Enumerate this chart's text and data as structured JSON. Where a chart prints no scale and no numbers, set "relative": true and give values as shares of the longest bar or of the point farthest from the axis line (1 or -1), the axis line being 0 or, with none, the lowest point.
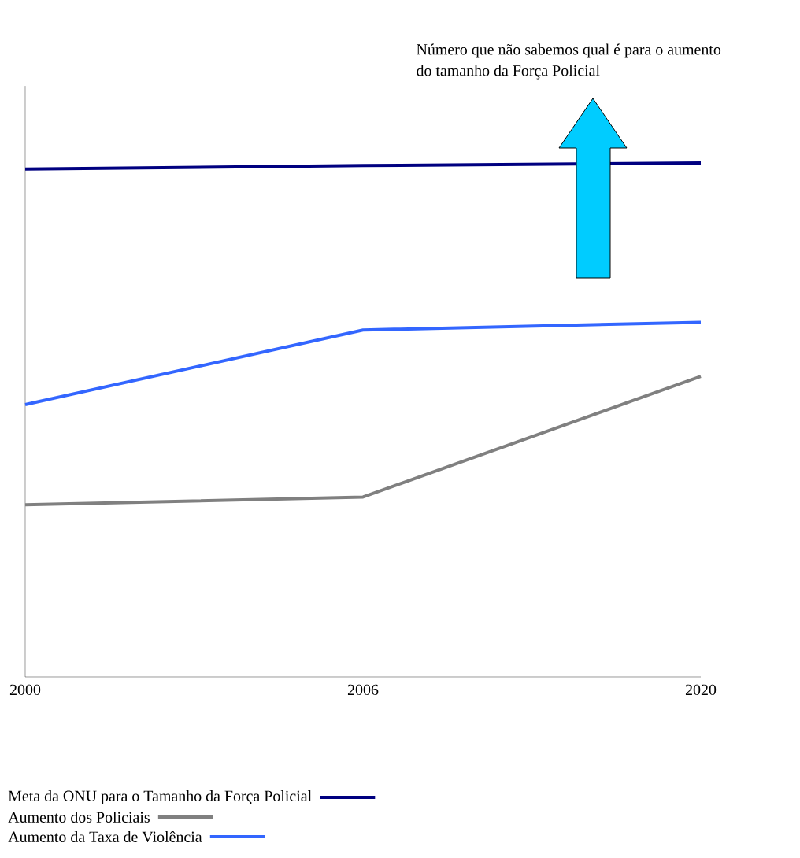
{
  "chart_data": {
    "type": "line",
    "relative": true,
    "categories": [
      "2000",
      "2006",
      "2020"
    ],
    "tick_labels": "x",
    "legend": "bottom left",
    "series": [
      {
        "name": "Meta da ONU para o Tamanho da Força Policial",
        "color": "#000080",
        "values": [
          0.988,
          0.995,
          1
        ]
      },
      {
        "name": "Aumento dos Policiais",
        "color": "#808080",
        "values": [
          0.335,
          0.35,
          0.585
        ]
      },
      {
        "name": "Aumento da Taxa de Violência",
        "color": "#3366ff",
        "values": [
          0.53,
          0.675,
          0.69
        ]
      }
    ],
    "annotations": [
      "Número que não sabemos qual é para o aumento do tamanho da Força Policial"
    ]
  }
}
